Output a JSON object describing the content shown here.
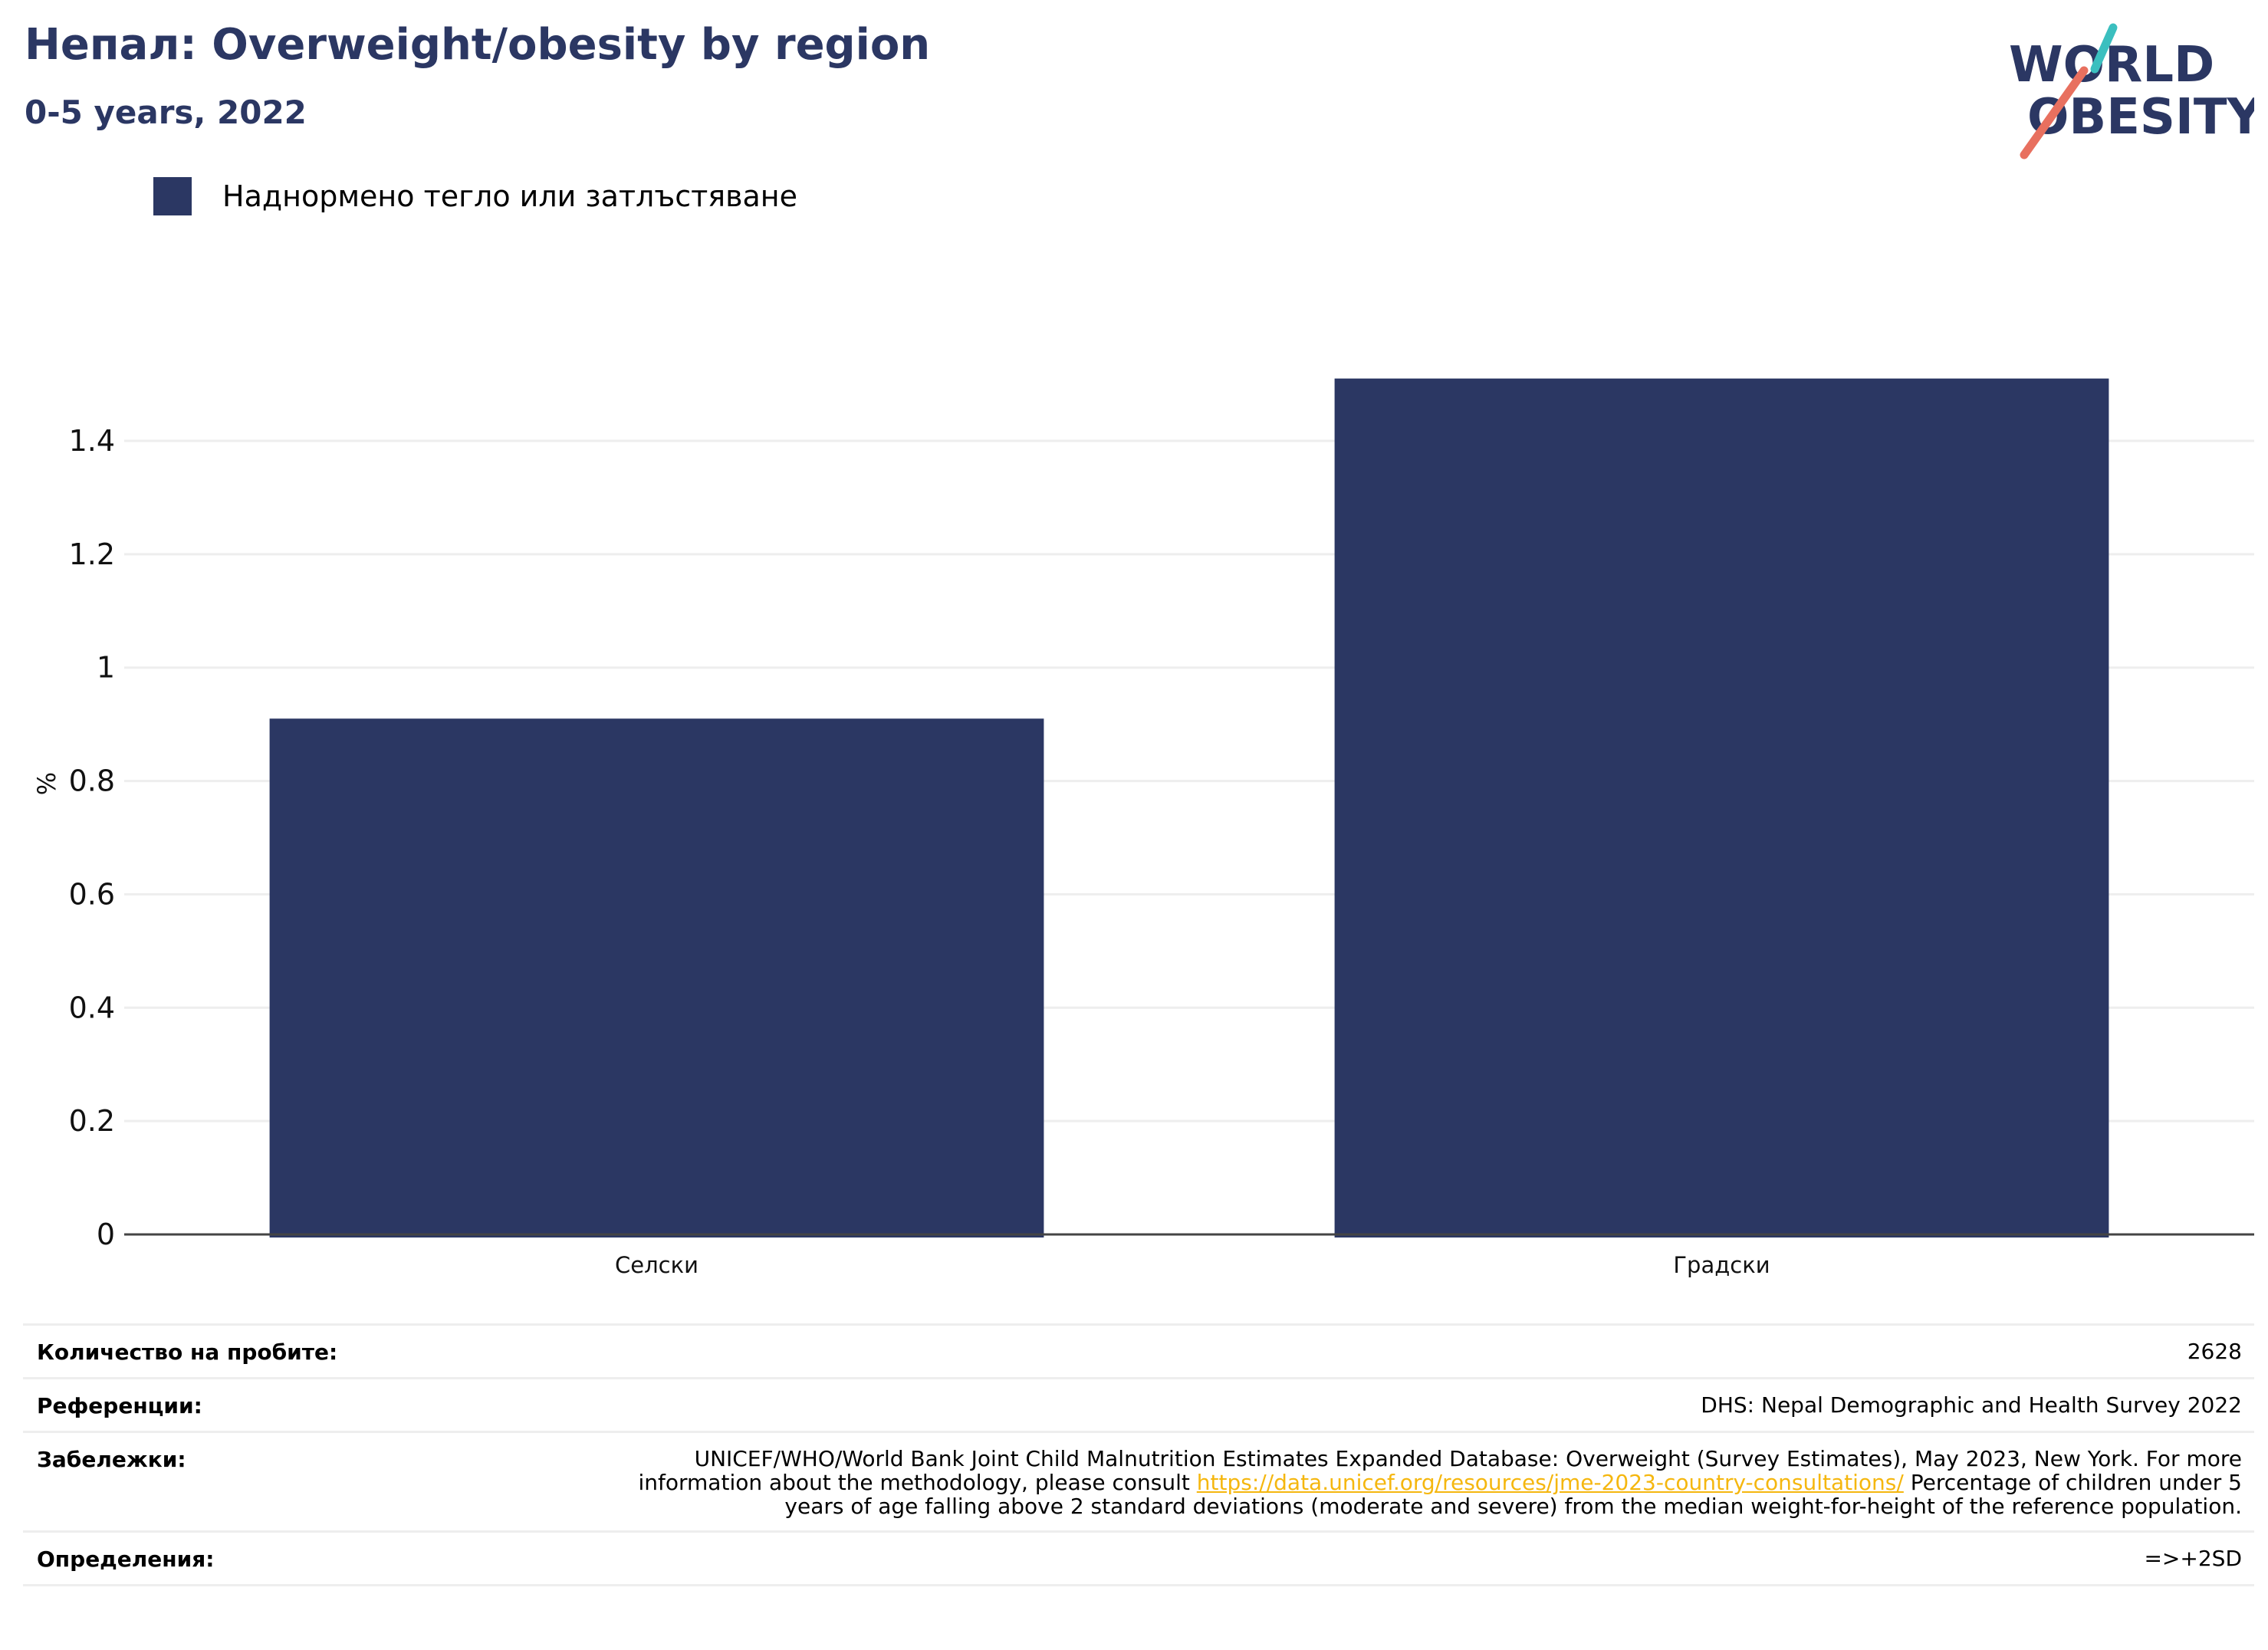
{
  "header": {
    "title": "Непал: Overweight/obesity by region",
    "subtitle": "0-5 years, 2022"
  },
  "logo": {
    "line1": "WORLD",
    "line2": "OBESITY"
  },
  "legend": {
    "label": "Наднормено тегло или затлъстяване"
  },
  "chart_data": {
    "type": "bar",
    "categories": [
      "Селски",
      "Градски"
    ],
    "series": [
      {
        "name": "Наднормено тегло или затлъстяване",
        "values": [
          0.91,
          1.51
        ]
      }
    ],
    "ylabel": "%",
    "xlabel": "",
    "ylim": [
      0,
      1.55
    ],
    "yticks": [
      0,
      0.2,
      0.4,
      0.6,
      0.8,
      1,
      1.2,
      1.4
    ],
    "ytick_labels": [
      "0",
      "0.2",
      "0.4",
      "0.6",
      "0.8",
      "1",
      "1.2",
      "1.4"
    ],
    "grid": true,
    "legend_position": "top-left",
    "color": "#2b3763"
  },
  "info": {
    "sample_label": "Количество на пробите:",
    "sample_value": "2628",
    "references_label": "Референции:",
    "references_value": "DHS: Nepal Demographic and Health Survey 2022",
    "notes_label": "Забележки:",
    "notes_text_1": "UNICEF/WHO/World Bank Joint Child Malnutrition Estimates Expanded Database: Overweight (Survey Estimates), May 2023, New York. For more information about the methodology, please consult",
    "notes_link": "https://data.unicef.org/resources/jme-2023-country-consultations/",
    "notes_text_2": "Percentage of children under 5 years of age falling above 2 standard deviations (moderate and severe) from the median weight-for-height of the reference population.",
    "definitions_label": "Определения:",
    "definitions_value": "=>+2SD"
  },
  "colors": {
    "brand_navy": "#2b3763",
    "logo_teal": "#3bbfbf",
    "logo_coral": "#e8705f",
    "link": "#f5b70f"
  }
}
